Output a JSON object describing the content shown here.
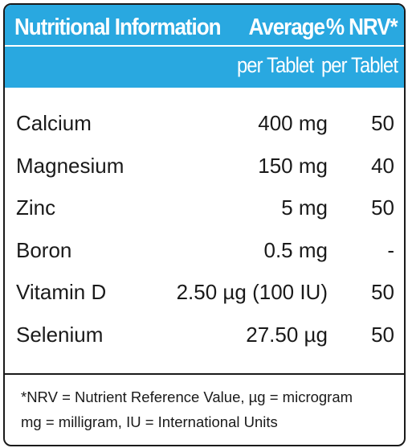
{
  "header": {
    "title": "Nutritional Information",
    "col_average": "Average",
    "col_nrv": "% NRV*",
    "sub_average": "per Tablet",
    "sub_nrv": "per Tablet"
  },
  "rows": [
    {
      "name": "Calcium",
      "amount": "400 mg",
      "nrv": "50"
    },
    {
      "name": "Magnesium",
      "amount": "150 mg",
      "nrv": "40"
    },
    {
      "name": "Zinc",
      "amount": "5 mg",
      "nrv": "50"
    },
    {
      "name": "Boron",
      "amount": "0.5 mg",
      "nrv": "-"
    },
    {
      "name": "Vitamin D",
      "amount": "2.50 µg (100 IU)",
      "nrv": "50"
    },
    {
      "name": "Selenium",
      "amount": "27.50 µg",
      "nrv": "50"
    }
  ],
  "footer": {
    "line1": "*NRV = Nutrient Reference Value, µg = microgram",
    "line2": "mg = milligram, IU = International Units"
  },
  "colors": {
    "header_bg": "#29a8e0",
    "header_text": "#ffffff",
    "border": "#1a1a1a"
  }
}
